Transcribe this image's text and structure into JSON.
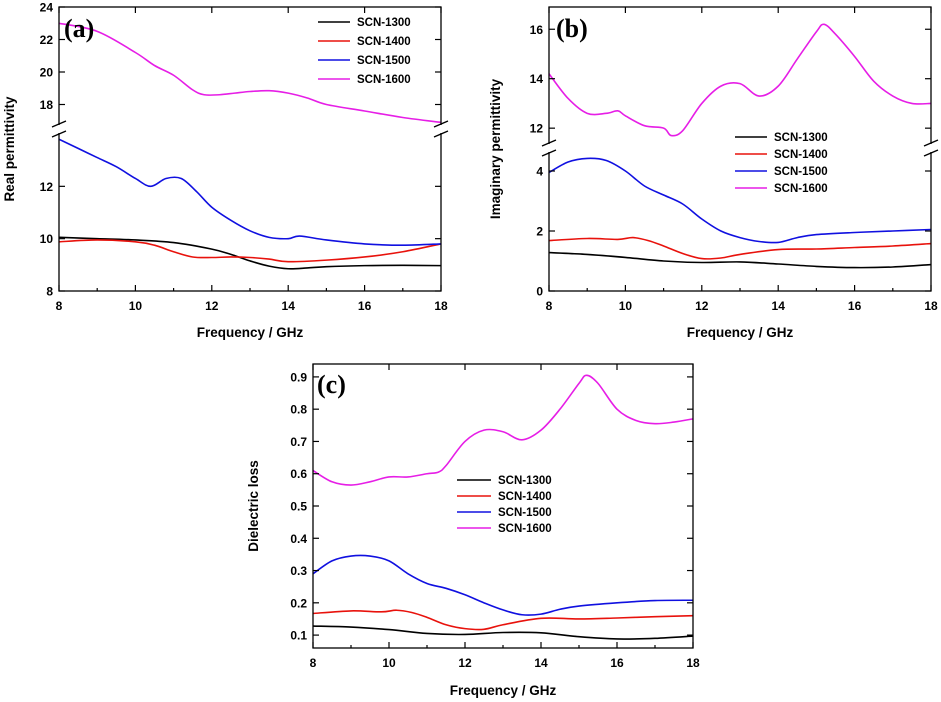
{
  "series_colors": {
    "SCN-1300": "#000000",
    "SCN-1400": "#e8120c",
    "SCN-1500": "#1010e0",
    "SCN-1600": "#e61ee6"
  },
  "chart_data": [
    {
      "id": "a",
      "panel_label": "(a)",
      "type": "line",
      "xlabel": "Frequency / GHz",
      "ylabel": "Real permittivity",
      "xlim": [
        8,
        18
      ],
      "xticks": [
        8,
        10,
        12,
        14,
        16,
        18
      ],
      "broken_axis": true,
      "lower_ylim": [
        8,
        14
      ],
      "lower_yticks": [
        8,
        10,
        12
      ],
      "upper_ylim": [
        16.8,
        24
      ],
      "upper_yticks": [
        18,
        20,
        22,
        24
      ],
      "legend_position": "top-right",
      "series": [
        {
          "name": "SCN-1300",
          "x": [
            8,
            9,
            10,
            11,
            12,
            12.5,
            13,
            13.5,
            14,
            14.5,
            15,
            16,
            17,
            18
          ],
          "y": [
            10.05,
            10.0,
            9.95,
            9.85,
            9.6,
            9.4,
            9.15,
            8.95,
            8.85,
            8.88,
            8.93,
            8.97,
            8.98,
            8.97
          ]
        },
        {
          "name": "SCN-1400",
          "x": [
            8,
            9,
            10,
            10.5,
            11,
            11.5,
            12,
            12.5,
            13,
            13.5,
            14,
            15,
            16,
            17,
            18
          ],
          "y": [
            9.88,
            9.95,
            9.88,
            9.75,
            9.5,
            9.3,
            9.28,
            9.3,
            9.28,
            9.22,
            9.12,
            9.18,
            9.3,
            9.5,
            9.8
          ]
        },
        {
          "name": "SCN-1500",
          "x": [
            8,
            8.5,
            9,
            9.5,
            10,
            10.4,
            10.8,
            11.2,
            11.6,
            12,
            12.5,
            13,
            13.5,
            14,
            14.3,
            15,
            16,
            17,
            18
          ],
          "y": [
            13.8,
            13.45,
            13.1,
            12.75,
            12.3,
            12.0,
            12.3,
            12.3,
            11.8,
            11.2,
            10.7,
            10.3,
            10.05,
            10.0,
            10.1,
            9.95,
            9.8,
            9.75,
            9.8
          ]
        },
        {
          "name": "SCN-1600",
          "x": [
            8,
            9,
            10,
            10.5,
            11,
            11.5,
            11.8,
            12.2,
            12.6,
            13,
            13.5,
            14,
            14.5,
            15,
            16,
            17,
            18
          ],
          "y": [
            23.0,
            22.5,
            21.2,
            20.4,
            19.8,
            18.9,
            18.6,
            18.6,
            18.7,
            18.8,
            18.85,
            18.7,
            18.4,
            18.0,
            17.6,
            17.2,
            16.9
          ]
        }
      ]
    },
    {
      "id": "b",
      "panel_label": "(b)",
      "type": "line",
      "xlabel": "Frequency / GHz",
      "ylabel": "Imaginary permittivity",
      "xlim": [
        8,
        18
      ],
      "xticks": [
        8,
        10,
        12,
        14,
        16,
        18
      ],
      "broken_axis": true,
      "lower_ylim": [
        0,
        4.6
      ],
      "lower_yticks": [
        0,
        2,
        4
      ],
      "upper_ylim": [
        11.4,
        16.9
      ],
      "upper_yticks": [
        12,
        14,
        16
      ],
      "legend_position": "right",
      "series": [
        {
          "name": "SCN-1300",
          "x": [
            8,
            9,
            10,
            11,
            12,
            13,
            14,
            15,
            16,
            17,
            18
          ],
          "y": [
            1.28,
            1.22,
            1.12,
            1.0,
            0.95,
            0.97,
            0.9,
            0.82,
            0.78,
            0.8,
            0.88
          ]
        },
        {
          "name": "SCN-1400",
          "x": [
            8,
            9,
            9.8,
            10.2,
            10.6,
            11,
            11.5,
            12,
            12.5,
            13,
            14,
            15,
            16,
            17,
            18
          ],
          "y": [
            1.68,
            1.75,
            1.72,
            1.78,
            1.68,
            1.5,
            1.25,
            1.08,
            1.1,
            1.22,
            1.38,
            1.4,
            1.45,
            1.5,
            1.58
          ]
        },
        {
          "name": "SCN-1500",
          "x": [
            8,
            8.5,
            9,
            9.5,
            10,
            10.5,
            11,
            11.5,
            12,
            12.5,
            13,
            13.5,
            14,
            14.5,
            15,
            16,
            17,
            18
          ],
          "y": [
            3.95,
            4.3,
            4.42,
            4.35,
            4.0,
            3.5,
            3.2,
            2.9,
            2.4,
            2.0,
            1.78,
            1.65,
            1.62,
            1.78,
            1.88,
            1.95,
            2.0,
            2.05
          ]
        },
        {
          "name": "SCN-1600",
          "x": [
            8,
            8.5,
            9,
            9.5,
            9.8,
            10,
            10.5,
            11,
            11.2,
            11.5,
            12,
            12.5,
            13,
            13.5,
            14,
            14.5,
            15,
            15.2,
            15.5,
            16,
            16.5,
            17,
            17.5,
            18
          ],
          "y": [
            14.2,
            13.2,
            12.6,
            12.6,
            12.7,
            12.5,
            12.1,
            12.0,
            11.7,
            11.9,
            13.0,
            13.7,
            13.8,
            13.3,
            13.7,
            14.8,
            15.9,
            16.2,
            15.8,
            14.9,
            13.9,
            13.3,
            13.0,
            13.0
          ]
        }
      ]
    },
    {
      "id": "c",
      "panel_label": "(c)",
      "type": "line",
      "xlabel": "Frequency / GHz",
      "ylabel": "Dielectric loss",
      "xlim": [
        8,
        18
      ],
      "xticks": [
        8,
        10,
        12,
        14,
        16,
        18
      ],
      "broken_axis": false,
      "ylim": [
        0.06,
        0.94
      ],
      "yticks": [
        0.1,
        0.2,
        0.3,
        0.4,
        0.5,
        0.6,
        0.7,
        0.8,
        0.9
      ],
      "legend_position": "center-left",
      "series": [
        {
          "name": "SCN-1300",
          "x": [
            8,
            9,
            10,
            11,
            12,
            13,
            14,
            15,
            16,
            17,
            18
          ],
          "y": [
            0.128,
            0.125,
            0.117,
            0.105,
            0.102,
            0.108,
            0.107,
            0.095,
            0.088,
            0.09,
            0.097
          ]
        },
        {
          "name": "SCN-1400",
          "x": [
            8,
            9,
            9.8,
            10.2,
            10.6,
            11,
            11.5,
            12,
            12.5,
            13,
            14,
            15,
            16,
            17,
            18
          ],
          "y": [
            0.167,
            0.175,
            0.172,
            0.177,
            0.17,
            0.155,
            0.132,
            0.12,
            0.118,
            0.132,
            0.152,
            0.15,
            0.153,
            0.157,
            0.16
          ]
        },
        {
          "name": "SCN-1500",
          "x": [
            8,
            8.5,
            9,
            9.5,
            10,
            10.5,
            11,
            11.5,
            12,
            12.5,
            13,
            13.5,
            14,
            14.5,
            15,
            16,
            17,
            18
          ],
          "y": [
            0.29,
            0.33,
            0.345,
            0.345,
            0.33,
            0.29,
            0.26,
            0.245,
            0.225,
            0.2,
            0.178,
            0.163,
            0.165,
            0.18,
            0.19,
            0.2,
            0.207,
            0.208
          ]
        },
        {
          "name": "SCN-1600",
          "x": [
            8,
            8.5,
            9,
            9.5,
            10,
            10.5,
            11,
            11.3,
            11.5,
            12,
            12.5,
            13,
            13.5,
            14,
            14.5,
            15,
            15.2,
            15.5,
            16,
            16.5,
            17,
            17.5,
            18
          ],
          "y": [
            0.61,
            0.575,
            0.565,
            0.575,
            0.59,
            0.59,
            0.6,
            0.605,
            0.625,
            0.7,
            0.735,
            0.73,
            0.705,
            0.735,
            0.8,
            0.88,
            0.905,
            0.88,
            0.8,
            0.765,
            0.755,
            0.76,
            0.77
          ]
        }
      ]
    }
  ]
}
